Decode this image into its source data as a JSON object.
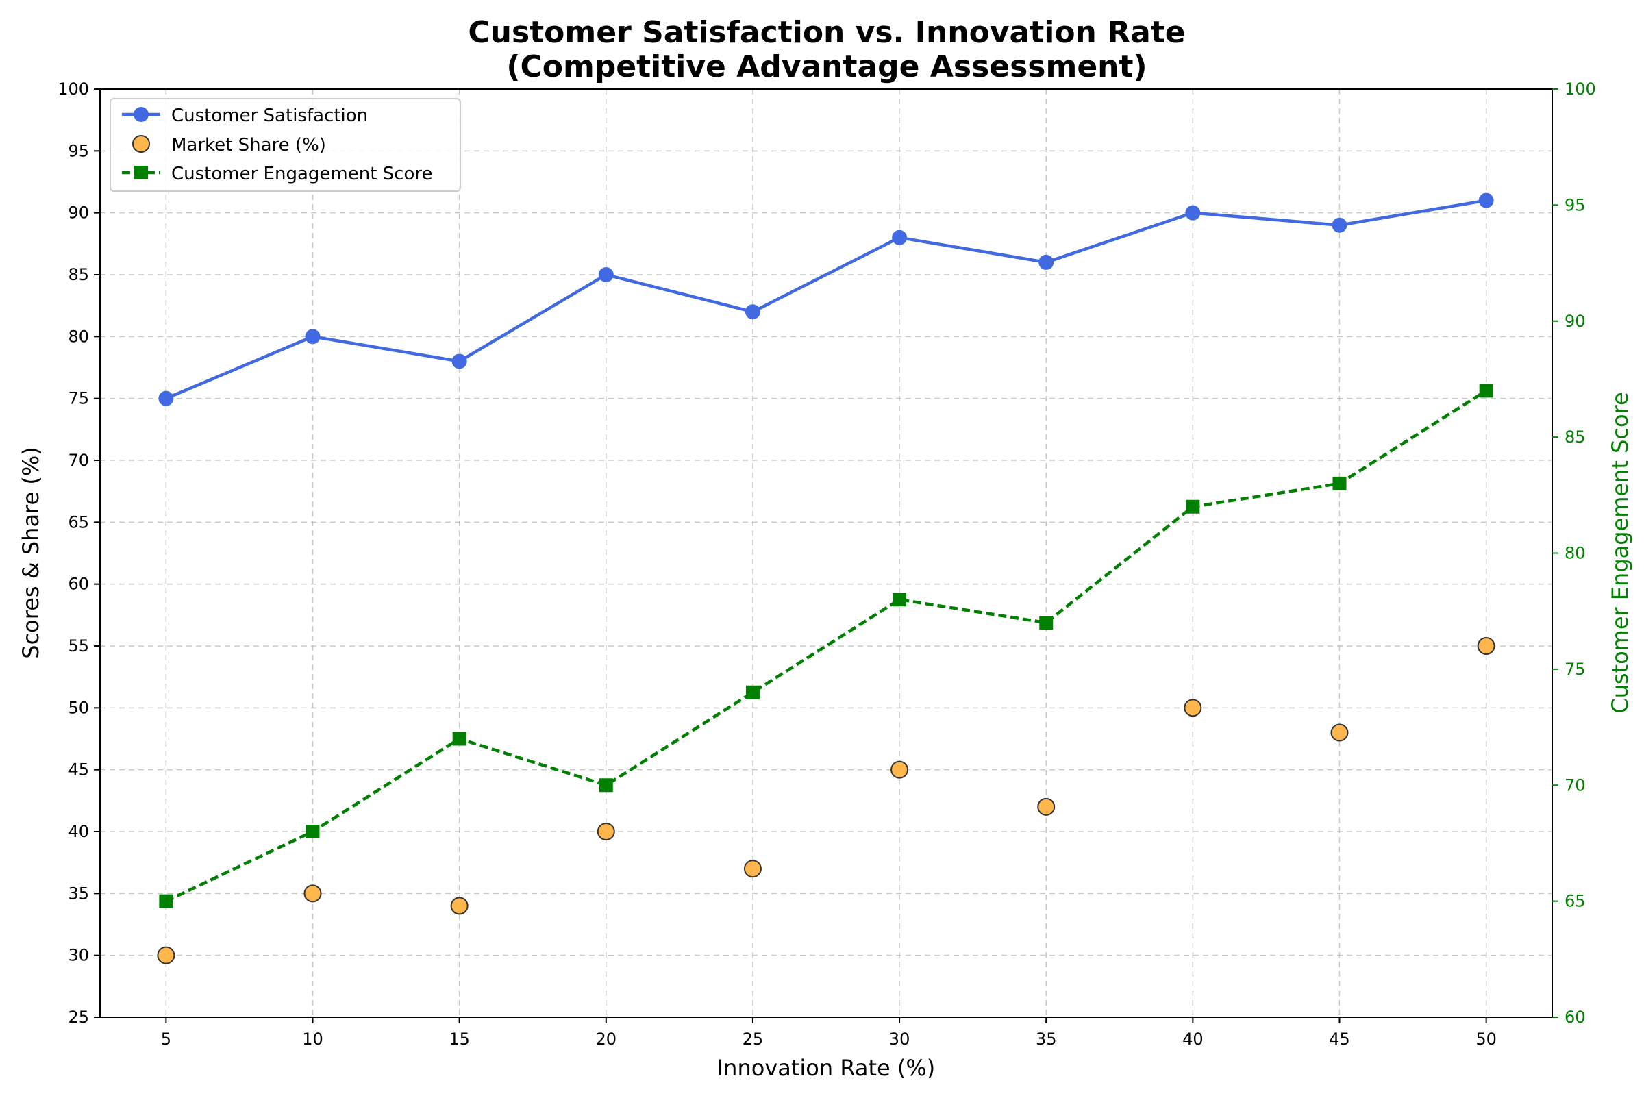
{
  "chart_data": {
    "type": "line",
    "title_line1": "Customer Satisfaction vs. Innovation Rate",
    "title_line2": "(Competitive Advantage Assessment)",
    "xlabel": "Innovation Rate (%)",
    "ylabel": "Scores & Share (%)",
    "y2label": "Customer Engagement Score",
    "x": [
      5,
      10,
      15,
      20,
      25,
      30,
      35,
      40,
      45,
      50
    ],
    "xlim": [
      2.75,
      52.25
    ],
    "ylim": [
      25,
      100
    ],
    "y2lim": [
      60,
      100
    ],
    "xticks": [
      5,
      10,
      15,
      20,
      25,
      30,
      35,
      40,
      45,
      50
    ],
    "yticks": [
      25,
      30,
      35,
      40,
      45,
      50,
      55,
      60,
      65,
      70,
      75,
      80,
      85,
      90,
      95,
      100
    ],
    "y2ticks": [
      60,
      65,
      70,
      75,
      80,
      85,
      90,
      95,
      100
    ],
    "grid": true,
    "legend_position": "upper-left",
    "series": [
      {
        "name": "Customer Satisfaction",
        "kind": "line",
        "axis": "left",
        "color": "#4169e1",
        "values": [
          75,
          80,
          78,
          85,
          82,
          88,
          86,
          90,
          89,
          91
        ]
      },
      {
        "name": "Market Share (%)",
        "kind": "scatter",
        "axis": "left",
        "color": "#ffb74d",
        "values": [
          30,
          35,
          34,
          40,
          37,
          45,
          42,
          50,
          48,
          55
        ]
      },
      {
        "name": "Customer Engagement Score",
        "kind": "dashed-line",
        "axis": "right",
        "color": "#008000",
        "values": [
          65,
          68,
          72,
          70,
          74,
          78,
          77,
          82,
          83,
          87
        ]
      }
    ]
  }
}
